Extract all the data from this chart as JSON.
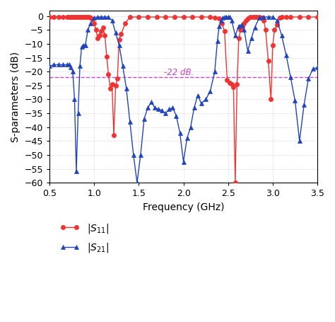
{
  "xlabel": "Frequency (GHz)",
  "ylabel": "S-parameters (dB)",
  "xlim": [
    0.5,
    3.5
  ],
  "ylim": [
    -60,
    2
  ],
  "yticks": [
    0,
    -5,
    -10,
    -15,
    -20,
    -25,
    -30,
    -35,
    -40,
    -45,
    -50,
    -55,
    -60
  ],
  "xticks": [
    0.5,
    1.0,
    1.5,
    2.0,
    2.5,
    3.0,
    3.5
  ],
  "ref_line_y": -22,
  "ref_line_label": "-22 dB.",
  "ref_line_color": "#cc44cc",
  "s11_color": "#ee3333",
  "s21_color": "#2244bb",
  "s11_x": [
    0.5,
    0.55,
    0.6,
    0.65,
    0.7,
    0.72,
    0.74,
    0.76,
    0.78,
    0.8,
    0.82,
    0.84,
    0.86,
    0.88,
    0.9,
    0.92,
    0.94,
    0.96,
    0.98,
    1.0,
    1.02,
    1.04,
    1.06,
    1.08,
    1.1,
    1.12,
    1.14,
    1.16,
    1.18,
    1.2,
    1.22,
    1.24,
    1.26,
    1.28,
    1.3,
    1.35,
    1.4,
    1.5,
    1.6,
    1.7,
    1.8,
    1.9,
    2.0,
    2.1,
    2.2,
    2.3,
    2.35,
    2.4,
    2.43,
    2.46,
    2.49,
    2.52,
    2.54,
    2.56,
    2.58,
    2.6,
    2.62,
    2.64,
    2.66,
    2.68,
    2.7,
    2.72,
    2.75,
    2.78,
    2.8,
    2.82,
    2.85,
    2.88,
    2.9,
    2.92,
    2.95,
    2.98,
    3.0,
    3.02,
    3.05,
    3.08,
    3.1,
    3.15,
    3.2,
    3.3,
    3.4,
    3.5
  ],
  "s11_y": [
    -0.3,
    -0.3,
    -0.3,
    -0.3,
    -0.3,
    -0.3,
    -0.3,
    -0.3,
    -0.3,
    -0.3,
    -0.3,
    -0.3,
    -0.3,
    -0.3,
    -0.3,
    -0.3,
    -0.3,
    -0.5,
    -1.0,
    -2.5,
    -5.0,
    -8.0,
    -7.0,
    -5.5,
    -4.0,
    -7.0,
    -14.5,
    -21.0,
    -26.0,
    -24.5,
    -43.0,
    -25.0,
    -22.5,
    -8.5,
    -6.5,
    -2.5,
    -0.3,
    -0.3,
    -0.3,
    -0.3,
    -0.3,
    -0.3,
    -0.3,
    -0.3,
    -0.3,
    -0.3,
    -0.5,
    -0.8,
    -2.5,
    -5.5,
    -23.0,
    -24.0,
    -24.5,
    -25.5,
    -60.0,
    -24.5,
    -8.0,
    -5.0,
    -3.5,
    -2.5,
    -1.5,
    -0.8,
    -0.3,
    -0.3,
    -0.3,
    -0.3,
    -0.3,
    -0.5,
    -1.5,
    -5.0,
    -16.0,
    -30.0,
    -10.5,
    -5.0,
    -3.0,
    -0.5,
    -0.3,
    -0.3,
    -0.3,
    -0.3,
    -0.3,
    -0.3
  ],
  "s21_x": [
    0.5,
    0.55,
    0.6,
    0.65,
    0.7,
    0.72,
    0.74,
    0.76,
    0.78,
    0.8,
    0.82,
    0.84,
    0.86,
    0.88,
    0.9,
    0.93,
    0.96,
    1.0,
    1.04,
    1.08,
    1.12,
    1.16,
    1.2,
    1.24,
    1.28,
    1.32,
    1.36,
    1.4,
    1.44,
    1.48,
    1.52,
    1.56,
    1.6,
    1.64,
    1.68,
    1.72,
    1.76,
    1.8,
    1.84,
    1.88,
    1.92,
    1.96,
    2.0,
    2.04,
    2.08,
    2.12,
    2.16,
    2.2,
    2.25,
    2.3,
    2.35,
    2.38,
    2.4,
    2.42,
    2.44,
    2.46,
    2.48,
    2.5,
    2.52,
    2.54,
    2.58,
    2.62,
    2.65,
    2.68,
    2.72,
    2.76,
    2.8,
    2.85,
    2.9,
    2.95,
    3.0,
    3.05,
    3.1,
    3.15,
    3.2,
    3.25,
    3.3,
    3.35,
    3.4,
    3.45,
    3.5
  ],
  "s21_y": [
    -18.0,
    -17.5,
    -17.5,
    -17.5,
    -17.5,
    -17.5,
    -18.5,
    -20.0,
    -30.0,
    -56.0,
    -35.0,
    -18.0,
    -11.0,
    -10.5,
    -10.5,
    -5.0,
    -2.5,
    -0.5,
    -0.3,
    -0.3,
    -0.3,
    -0.3,
    -1.5,
    -6.0,
    -10.5,
    -18.0,
    -26.0,
    -38.0,
    -50.0,
    -60.0,
    -50.0,
    -37.0,
    -33.0,
    -31.0,
    -33.0,
    -33.5,
    -34.0,
    -35.0,
    -33.5,
    -33.0,
    -36.0,
    -42.0,
    -52.5,
    -44.0,
    -40.0,
    -33.0,
    -28.5,
    -31.5,
    -30.0,
    -27.0,
    -20.0,
    -9.0,
    -3.5,
    -1.5,
    -0.5,
    -0.3,
    -0.3,
    -0.3,
    -0.3,
    -1.5,
    -7.0,
    -3.5,
    -3.0,
    -5.0,
    -12.5,
    -8.0,
    -4.0,
    -0.5,
    -0.3,
    -0.3,
    -0.3,
    -1.5,
    -7.0,
    -14.0,
    -22.0,
    -30.5,
    -45.0,
    -32.0,
    -22.5,
    -19.0,
    -18.5
  ]
}
